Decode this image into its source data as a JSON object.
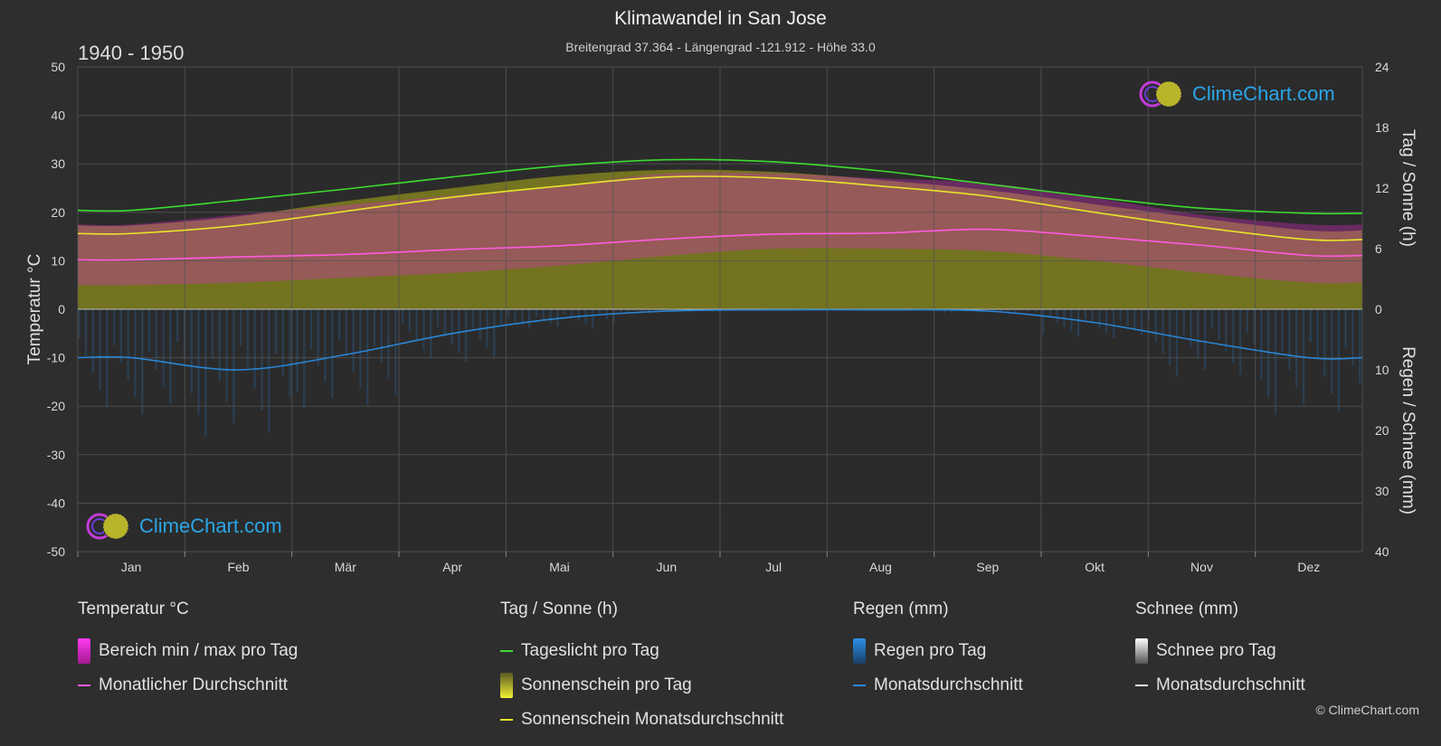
{
  "header": {
    "title": "Klimawandel in San Jose",
    "subtitle": "Breitengrad 37.364 - Längengrad -121.912 - Höhe 33.0",
    "period": "1940 - 1950"
  },
  "axes": {
    "left_label": "Temperatur °C",
    "right_top_label": "Tag / Sonne (h)",
    "right_bottom_label": "Regen / Schnee (mm)"
  },
  "legend": {
    "temperature": {
      "title": "Temperatur °C",
      "range": "Bereich min / max pro Tag",
      "avg": "Monatlicher Durchschnitt"
    },
    "sun": {
      "title": "Tag / Sonne (h)",
      "daylight": "Tageslicht pro Tag",
      "sunshine": "Sonnenschein pro Tag",
      "sunshine_avg": "Sonnenschein Monatsdurchschnitt"
    },
    "rain": {
      "title": "Regen (mm)",
      "per_day": "Regen pro Tag",
      "avg": "Monatsdurchschnitt"
    },
    "snow": {
      "title": "Schnee (mm)",
      "per_day": "Schnee pro Tag",
      "avg": "Monatsdurchschnitt"
    }
  },
  "logo_text": "ClimeChart.com",
  "credit": "© ClimeChart.com",
  "colors": {
    "daylight": "#3ddc2e",
    "sunshine_avg": "#e6e62a",
    "sunshine_fill": "#8c8c1e",
    "temp_avg": "#ff5ae0",
    "temp_range": "#d62bc4",
    "rain": "#2a86d6",
    "snow": "#d9d9d9",
    "background": "#2e2e2e",
    "grid": "#555555",
    "logo_text": "#2aa6e8"
  },
  "chart_data": {
    "type": "line",
    "categories": [
      "Jan",
      "Feb",
      "Mär",
      "Apr",
      "Mai",
      "Jun",
      "Jul",
      "Aug",
      "Sep",
      "Okt",
      "Nov",
      "Dez"
    ],
    "temperature_axis": {
      "ticks": [
        50,
        40,
        30,
        20,
        10,
        0,
        -10,
        -20,
        -30,
        -40,
        -50
      ],
      "ylim": [
        -50,
        50
      ]
    },
    "sun_axis": {
      "ticks": [
        24,
        18,
        12,
        6,
        0
      ],
      "ylim": [
        0,
        24
      ]
    },
    "rain_axis": {
      "ticks": [
        0,
        10,
        20,
        30,
        40
      ],
      "ylim": [
        0,
        40
      ]
    },
    "series": [
      {
        "name": "Tageslicht pro Tag",
        "axis": "sun",
        "values": [
          9.8,
          10.8,
          11.9,
          13.1,
          14.2,
          14.8,
          14.6,
          13.7,
          12.4,
          11.1,
          10.0,
          9.5
        ]
      },
      {
        "name": "Sonnenschein Monatsdurchschnitt",
        "axis": "sun",
        "values": [
          7.5,
          8.3,
          9.7,
          11.1,
          12.2,
          13.1,
          13.0,
          12.2,
          11.2,
          9.6,
          8.1,
          6.9
        ]
      },
      {
        "name": "Monatlicher Durchschnitt",
        "axis": "temperature",
        "values": [
          10.2,
          10.8,
          11.3,
          12.3,
          13.1,
          14.5,
          15.5,
          15.7,
          16.5,
          15.0,
          13.2,
          11.1
        ]
      },
      {
        "name": "Monatsdurchschnitt",
        "axis": "rain",
        "values": [
          8.0,
          10.0,
          7.5,
          4.0,
          1.5,
          0.3,
          0.1,
          0.1,
          0.3,
          2.2,
          5.3,
          8.0
        ]
      }
    ],
    "temperature_range": {
      "min": [
        5.0,
        5.5,
        6.5,
        7.5,
        9.0,
        11.0,
        12.5,
        12.5,
        12.0,
        10.0,
        7.5,
        5.5
      ],
      "max": [
        17.5,
        19.5,
        21.5,
        23.5,
        25.5,
        28.0,
        28.0,
        27.0,
        26.0,
        23.0,
        19.5,
        17.5
      ]
    },
    "sunshine_per_day_upper": [
      8.3,
      9.2,
      10.7,
      12.0,
      13.2,
      13.8,
      13.6,
      12.8,
      11.8,
      10.4,
      9.0,
      7.8
    ]
  }
}
